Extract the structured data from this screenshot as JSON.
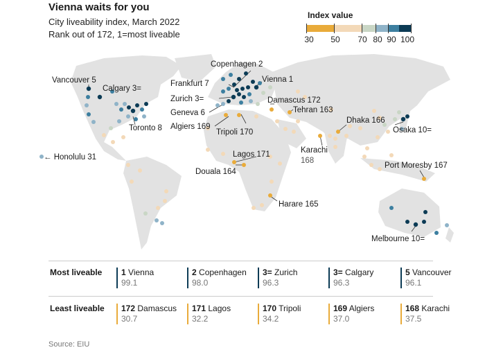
{
  "title": "Vienna waits for you",
  "subtitle": "City liveability index, March 2022",
  "subtitle2": "Rank out of 172, 1=most liveable",
  "legend": {
    "title": "Index value",
    "ticks": [
      "30",
      "50",
      "70",
      "80",
      "90",
      "100"
    ],
    "colors": [
      "#e9ab3a",
      "#f3d9b8",
      "#c9d6c5",
      "#8fb3c8",
      "#3d7fa0",
      "#0c3b55"
    ]
  },
  "map_labels": {
    "vancouver": "Vancouver 5",
    "calgary": "Calgary 3=",
    "toronto": "Toronto 8",
    "honolulu": "← Honolulu 31",
    "copenhagen": "Copenhagen 2",
    "vienna": "Vienna 1",
    "frankfurt": "Frankfurt 7",
    "zurich": "Zurich 3=",
    "geneva": "Geneva 6",
    "algiers": "Algiers 169",
    "damascus": "Damascus 172",
    "tehran": "Tehran 163",
    "tripoli": "Tripoli 170",
    "dhaka": "Dhaka 166",
    "osaka": "Osaka 10=",
    "karachi": "Karachi",
    "karachi_rank": "168",
    "lagos": "Lagos 171",
    "douala": "Douala 164",
    "port_moresby": "Port Moresby 167",
    "harare": "Harare 165",
    "melbourne": "Melbourne 10="
  },
  "most_liveable": {
    "label": "Most liveable",
    "items": [
      {
        "rank": "1",
        "city": "Vienna",
        "value": "99.1"
      },
      {
        "rank": "2",
        "city": "Copenhagen",
        "value": "98.0"
      },
      {
        "rank": "3=",
        "city": "Zurich",
        "value": "96.3"
      },
      {
        "rank": "3=",
        "city": "Calgary",
        "value": "96.3"
      },
      {
        "rank": "5",
        "city": "Vancouver",
        "value": "96.1"
      }
    ]
  },
  "least_liveable": {
    "label": "Least liveable",
    "items": [
      {
        "rank": "172",
        "city": "Damascus",
        "value": "30.7"
      },
      {
        "rank": "171",
        "city": "Lagos",
        "value": "32.2"
      },
      {
        "rank": "170",
        "city": "Tripoli",
        "value": "34.2"
      },
      {
        "rank": "169",
        "city": "Algiers",
        "value": "37.0"
      },
      {
        "rank": "168",
        "city": "Karachi",
        "value": "37.5"
      }
    ]
  },
  "source": "Source: EIU"
}
